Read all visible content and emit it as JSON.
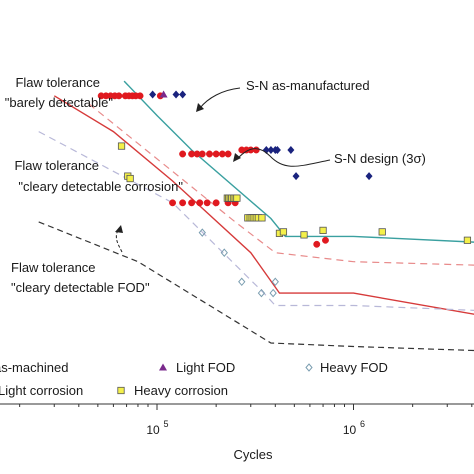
{
  "chart_data": {
    "type": "scatter",
    "x_scale": "log",
    "y_scale": "log",
    "xlabel": "Cycles",
    "ylabel": "",
    "xlim": [
      8000,
      8000000
    ],
    "ylim": [
      70,
      700
    ],
    "x_ticks": [
      {
        "value": 100000,
        "base": "10",
        "exp": "5"
      },
      {
        "value": 1000000,
        "base": "10",
        "exp": "6"
      }
    ],
    "grid": false,
    "legend_position": "bottom-left",
    "curves": [
      {
        "key": "sn_as_manufactured",
        "color": "#3aa0a0",
        "dash": "solid",
        "points": [
          [
            68000,
            560
          ],
          [
            100000,
            430
          ],
          [
            150000,
            330
          ],
          [
            380000,
            195
          ],
          [
            450000,
            170
          ],
          [
            1000000,
            170
          ],
          [
            7000000,
            160
          ]
        ]
      },
      {
        "key": "sn_design",
        "color": "#d63a3a",
        "dash": "solid",
        "points": [
          [
            30000,
            500
          ],
          [
            60000,
            380
          ],
          [
            120000,
            260
          ],
          [
            300000,
            150
          ],
          [
            420000,
            110
          ],
          [
            1000000,
            110
          ],
          [
            7000000,
            88
          ]
        ]
      },
      {
        "key": "flaw_barely",
        "color": "#e88a8a",
        "dash": "dashed",
        "points": [
          [
            45000,
            470
          ],
          [
            250000,
            190
          ],
          [
            400000,
            150
          ],
          [
            1000000,
            140
          ],
          [
            7000000,
            135
          ]
        ]
      },
      {
        "key": "flaw_corrosion",
        "color": "#b8b8d8",
        "dash": "dashed",
        "points": [
          [
            25000,
            380
          ],
          [
            120000,
            220
          ],
          [
            350000,
            110
          ],
          [
            400000,
            100
          ],
          [
            1000000,
            100
          ],
          [
            7000000,
            95
          ]
        ]
      },
      {
        "key": "flaw_fod",
        "color": "#333333",
        "dash": "dashed",
        "points": [
          [
            25000,
            190
          ],
          [
            80000,
            140
          ],
          [
            380000,
            75
          ],
          [
            1000000,
            73
          ],
          [
            7000000,
            70
          ]
        ]
      }
    ],
    "series": [
      {
        "key": "as_machined",
        "name": "as-machined",
        "marker": "circle",
        "color": "#e0191f",
        "x": [
          52000,
          55000,
          58000,
          61000,
          64000,
          69000,
          72000,
          75000,
          78000,
          82000,
          104000,
          135000,
          150000,
          160000,
          170000,
          185000,
          200000,
          215000,
          230000,
          270000,
          285000,
          300000,
          320000,
          120000,
          135000,
          150000,
          165000,
          180000,
          200000,
          230000,
          250000,
          650000,
          720000,
          6500000
        ],
        "y": [
          500,
          500,
          500,
          500,
          500,
          500,
          500,
          500,
          500,
          500,
          500,
          320,
          320,
          320,
          320,
          320,
          320,
          320,
          320,
          330,
          330,
          330,
          330,
          220,
          220,
          220,
          220,
          220,
          220,
          220,
          220,
          160,
          165,
          165
        ]
      },
      {
        "key": "light_fod",
        "name": "Light FOD",
        "marker": "triangle",
        "color": "#7a2a8c",
        "x": [
          108000
        ],
        "y": [
          505
        ]
      },
      {
        "key": "heavy_fod",
        "name": "Heavy FOD",
        "marker": "diamond-open",
        "color": "#7a9db0",
        "x": [
          170000,
          220000,
          270000,
          340000,
          390000,
          400000
        ],
        "y": [
          175,
          150,
          120,
          110,
          110,
          120
        ]
      },
      {
        "key": "heavy_corrosion",
        "name": "Heavy corrosion",
        "marker": "square",
        "color": "#f4f04a",
        "x": [
          66000,
          71000,
          73000,
          228000,
          232000,
          236000,
          240000,
          245000,
          250000,
          255000,
          290000,
          298000,
          305000,
          312000,
          320000,
          328000,
          342000,
          420000,
          440000,
          560000,
          700000,
          1400000,
          3800000
        ],
        "y": [
          340,
          270,
          265,
          228,
          228,
          228,
          228,
          228,
          228,
          228,
          196,
          196,
          196,
          196,
          196,
          196,
          196,
          174,
          176,
          172,
          178,
          176,
          165
        ]
      },
      {
        "key": "runout",
        "name": "",
        "marker": "diamond",
        "color": "#1a237e",
        "x": [
          95000,
          125000,
          135000,
          360000,
          380000,
          400000,
          410000,
          480000,
          510000,
          1200000,
          7200000
        ],
        "y": [
          505,
          505,
          505,
          330,
          330,
          330,
          330,
          330,
          270,
          270,
          280
        ]
      }
    ]
  },
  "annotations": {
    "sn_as_manufactured": "S-N as-manufactured",
    "sn_design": "S-N design (3σ)",
    "flaw_barely_line1": "Flaw tolerance",
    "flaw_barely_line2": "\"barely detectable\"",
    "flaw_corrosion_line1": "Flaw tolerance",
    "flaw_corrosion_line2": "\"cleary detectable corrosion\"",
    "flaw_fod_line1": "Flaw tolerance",
    "flaw_fod_line2": "\"cleary detectable FOD\""
  },
  "legend": {
    "position": "bottom-left",
    "items": [
      {
        "key": "as_machined",
        "label": "as-machined",
        "marker": "circle",
        "color": "#e0191f"
      },
      {
        "key": "light_fod",
        "label": "Light FOD",
        "marker": "triangle",
        "color": "#7a2a8c"
      },
      {
        "key": "heavy_fod",
        "label": "Heavy FOD",
        "marker": "diamond-open",
        "color": "#7a9db0"
      },
      {
        "key": "light_corrosion",
        "label": "Light corrosion",
        "marker": "none",
        "color": "#000000"
      },
      {
        "key": "heavy_corrosion",
        "label": "Heavy corrosion",
        "marker": "square",
        "color": "#f4f04a"
      }
    ]
  }
}
